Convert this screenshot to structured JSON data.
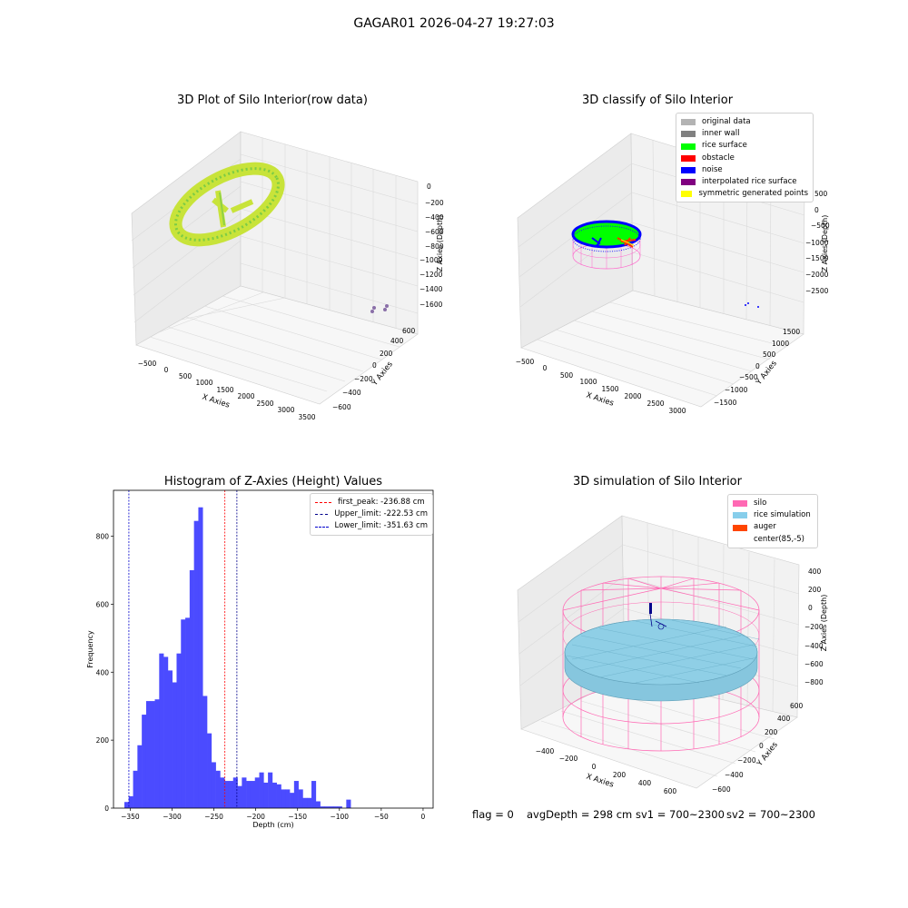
{
  "suptitle": "GAGAR01 2026-04-27 19:27:03",
  "footer": {
    "flag": "flag = 0",
    "avg_depth": "avgDepth = 298 cm",
    "sv1": "sv1 = 700~2300",
    "sv2": "sv2 = 700~2300"
  },
  "chart_data": [
    {
      "type": "scatter3d",
      "title": "3D Plot of Silo Interior(row data)",
      "xlabel": "X Axies",
      "ylabel": "Y Axies",
      "zlabel": "Z Axies (Depth)",
      "xticks": [
        "−500",
        "0",
        "500",
        "1000",
        "1500",
        "2000",
        "2500",
        "3000",
        "3500"
      ],
      "yticks": [
        "−600",
        "−400",
        "−200",
        "0",
        "200",
        "400",
        "600"
      ],
      "zticks": [
        "0",
        "−200",
        "−400",
        "−600",
        "−800",
        "−1000",
        "−1200",
        "−1400",
        "−1600"
      ],
      "colors": {
        "points": "#b8e03a",
        "points_dark": "#6cc04a",
        "far_points": "#8a6fa8"
      }
    },
    {
      "type": "scatter3d",
      "title": "3D classify of Silo Interior",
      "xlabel": "X Axies",
      "ylabel": "Y Axies",
      "zlabel": "Z Axies (Depth)",
      "xticks": [
        "−500",
        "0",
        "500",
        "1000",
        "1500",
        "2000",
        "2500",
        "3000"
      ],
      "yticks": [
        "−1500",
        "−1000",
        "−500",
        "0",
        "500",
        "1000",
        "1500"
      ],
      "zticks": [
        "500",
        "0",
        "−500",
        "−1000",
        "−1500",
        "−2000",
        "−2500"
      ],
      "legend": [
        {
          "label": "original data",
          "color": "#b3b3b3"
        },
        {
          "label": "inner wall",
          "color": "#808080"
        },
        {
          "label": "rice surface",
          "color": "#00ff00"
        },
        {
          "label": "obstacle",
          "color": "#ff0000"
        },
        {
          "label": "noise",
          "color": "#0000ff"
        },
        {
          "label": "interpolated rice surface",
          "color": "#800080"
        },
        {
          "label": "symmetric generated points",
          "color": "#ffff00"
        }
      ]
    },
    {
      "type": "bar",
      "title": "Histogram of Z-Axies (Height) Values",
      "xlabel": "Depth (cm)",
      "ylabel": "Frequency",
      "xlim": [
        -370,
        12
      ],
      "ylim": [
        0,
        935
      ],
      "xticks": [
        -350,
        -300,
        -250,
        -200,
        -150,
        -100,
        -50,
        0
      ],
      "xtick_labels": [
        "−350",
        "−300",
        "−250",
        "−200",
        "−150",
        "−100",
        "−50",
        "0"
      ],
      "yticks": [
        0,
        200,
        400,
        600,
        800
      ],
      "yticks_labels": [
        "0",
        "200",
        "400",
        "600",
        "800"
      ],
      "bar_color": "#4b4bff",
      "bins": {
        "start": -357,
        "width": 5.2,
        "counts": [
          18,
          35,
          110,
          185,
          275,
          315,
          315,
          320,
          455,
          445,
          405,
          370,
          455,
          555,
          560,
          700,
          845,
          885,
          330,
          220,
          135,
          110,
          90,
          80,
          80,
          90,
          65,
          90,
          80,
          80,
          90,
          105,
          75,
          105,
          75,
          70,
          55,
          55,
          45,
          80,
          55,
          30,
          30,
          80,
          20,
          5,
          5,
          5,
          5,
          5,
          0,
          25
        ]
      },
      "vlines": [
        {
          "label": "first_peak: -236.88 cm",
          "x": -236.88,
          "color": "#ff0000"
        },
        {
          "label": "Upper_limit: -222.53 cm",
          "x": -222.53,
          "color": "#00008b"
        },
        {
          "label": "Lower_limit: -351.63 cm",
          "x": -351.63,
          "color": "#0000cd"
        }
      ]
    },
    {
      "type": "surface3d",
      "title": "3D simulation of Silo Interior",
      "xlabel": "X Axies",
      "ylabel": "Y Axies",
      "zlabel": "Z Axies (Depth)",
      "xticks": [
        "−400",
        "−200",
        "0",
        "200",
        "400",
        "600"
      ],
      "yticks": [
        "−600",
        "−400",
        "−200",
        "0",
        "200",
        "400",
        "600"
      ],
      "zticks": [
        "400",
        "200",
        "0",
        "−200",
        "−400",
        "−600",
        "−800"
      ],
      "legend": [
        {
          "label": "silo",
          "color": "#ff69b4"
        },
        {
          "label": "rice simulation",
          "color": "#87ceeb"
        },
        {
          "label": "auger",
          "color": "#ff4500"
        },
        {
          "label": "center(85,-5)",
          "color": "#ffffff"
        }
      ]
    }
  ]
}
